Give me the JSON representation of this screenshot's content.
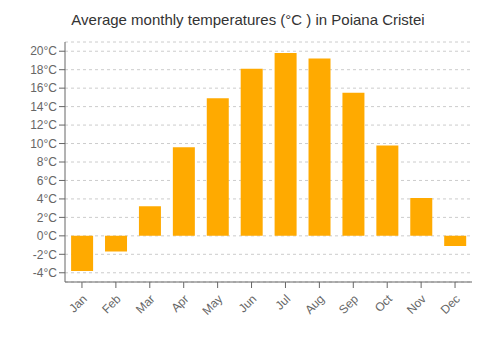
{
  "chart_data": {
    "type": "bar",
    "title": "Average monthly temperatures (°C ) in Poiana Cristei",
    "categories": [
      "Jan",
      "Feb",
      "Mar",
      "Apr",
      "May",
      "Jun",
      "Jul",
      "Aug",
      "Sep",
      "Oct",
      "Nov",
      "Dec"
    ],
    "values": [
      -3.8,
      -1.7,
      3.2,
      9.6,
      14.9,
      18.1,
      19.8,
      19.2,
      15.5,
      9.8,
      4.1,
      -1.1
    ],
    "color": "#FFAA00",
    "ylim": [
      -5,
      21
    ],
    "yticks": [
      {
        "value": -4,
        "label": "-4°C"
      },
      {
        "value": -2,
        "label": "-2°C"
      },
      {
        "value": 0,
        "label": "0°C"
      },
      {
        "value": 2,
        "label": "2°C"
      },
      {
        "value": 4,
        "label": "4°C"
      },
      {
        "value": 6,
        "label": "6°C"
      },
      {
        "value": 8,
        "label": "8°C"
      },
      {
        "value": 10,
        "label": "10°C"
      },
      {
        "value": 12,
        "label": "12°C"
      },
      {
        "value": 14,
        "label": "14°C"
      },
      {
        "value": 16,
        "label": "16°C"
      },
      {
        "value": 18,
        "label": "18°C"
      },
      {
        "value": 20,
        "label": "20°C"
      }
    ],
    "grid": true
  }
}
